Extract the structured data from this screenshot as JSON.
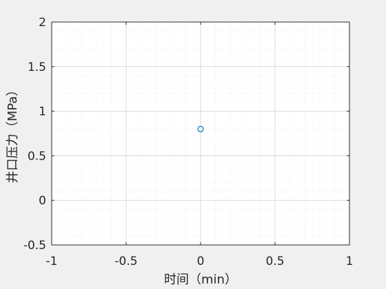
{
  "chart_data": {
    "type": "scatter",
    "title": "",
    "xlabel": "时间（min）",
    "ylabel": "井口压力（MPa）",
    "xlim": [
      -1,
      1
    ],
    "ylim": [
      -0.5,
      2
    ],
    "xticks": [
      -1,
      -0.5,
      0,
      0.5,
      1
    ],
    "xtick_labels": [
      "-1",
      "-0.5",
      "0",
      "0.5",
      "1"
    ],
    "yticks": [
      -0.5,
      0,
      0.5,
      1,
      1.5,
      2
    ],
    "ytick_labels": [
      "-0.5",
      "0",
      "0.5",
      "1",
      "1.5",
      "2"
    ],
    "grid": true,
    "minor_grid": true,
    "series": [
      {
        "marker": "circle-open",
        "color": "#0072BD",
        "points": [
          {
            "x": 0,
            "y": 0.8
          }
        ]
      }
    ]
  },
  "colors": {
    "figure_background": "#f0f0f0",
    "axes_background": "#ffffff",
    "axis_color": "#262626",
    "major_grid": "#d9d9d9",
    "minor_grid": "#ebebeb",
    "series": "#0072BD"
  }
}
